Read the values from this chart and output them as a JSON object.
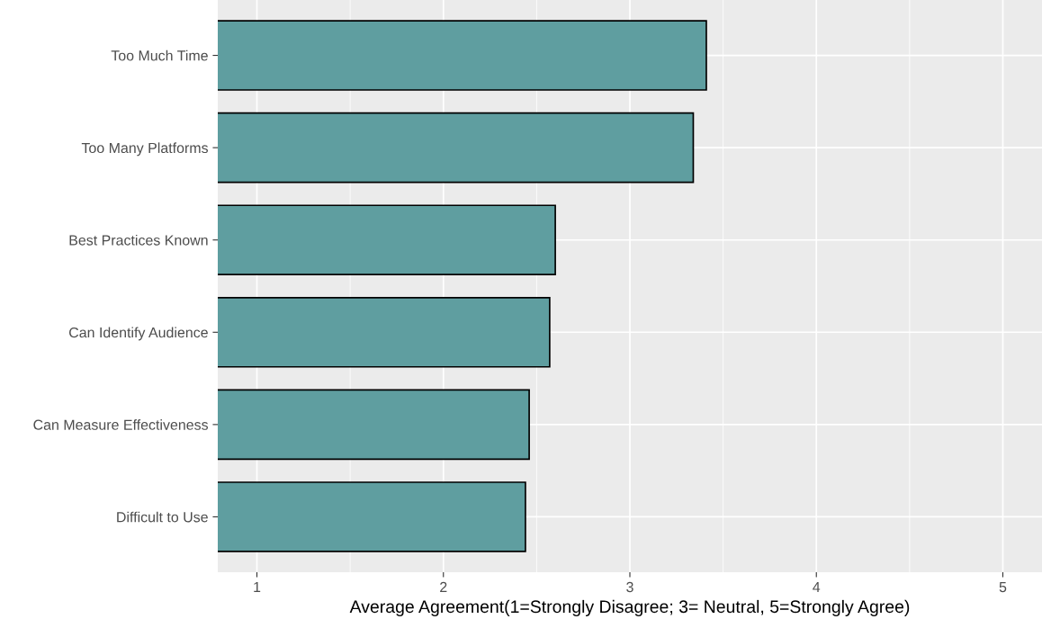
{
  "chart_data": {
    "type": "bar",
    "orientation": "horizontal",
    "categories": [
      "Too Much Time",
      "Too Many Platforms",
      "Best Practices Known",
      "Can Identify Audience",
      "Can Measure Effectiveness",
      "Difficult to Use"
    ],
    "values": [
      3.41,
      3.34,
      2.6,
      2.57,
      2.46,
      2.44
    ],
    "color": "#5f9ea0",
    "xlabel": "Average Agreement(1=Strongly Disagree; 3= Neutral, 5=Strongly Agree)",
    "xlim": [
      0.79,
      5.21
    ],
    "xticks": [
      1,
      2,
      3,
      4,
      5
    ],
    "grid": true
  }
}
